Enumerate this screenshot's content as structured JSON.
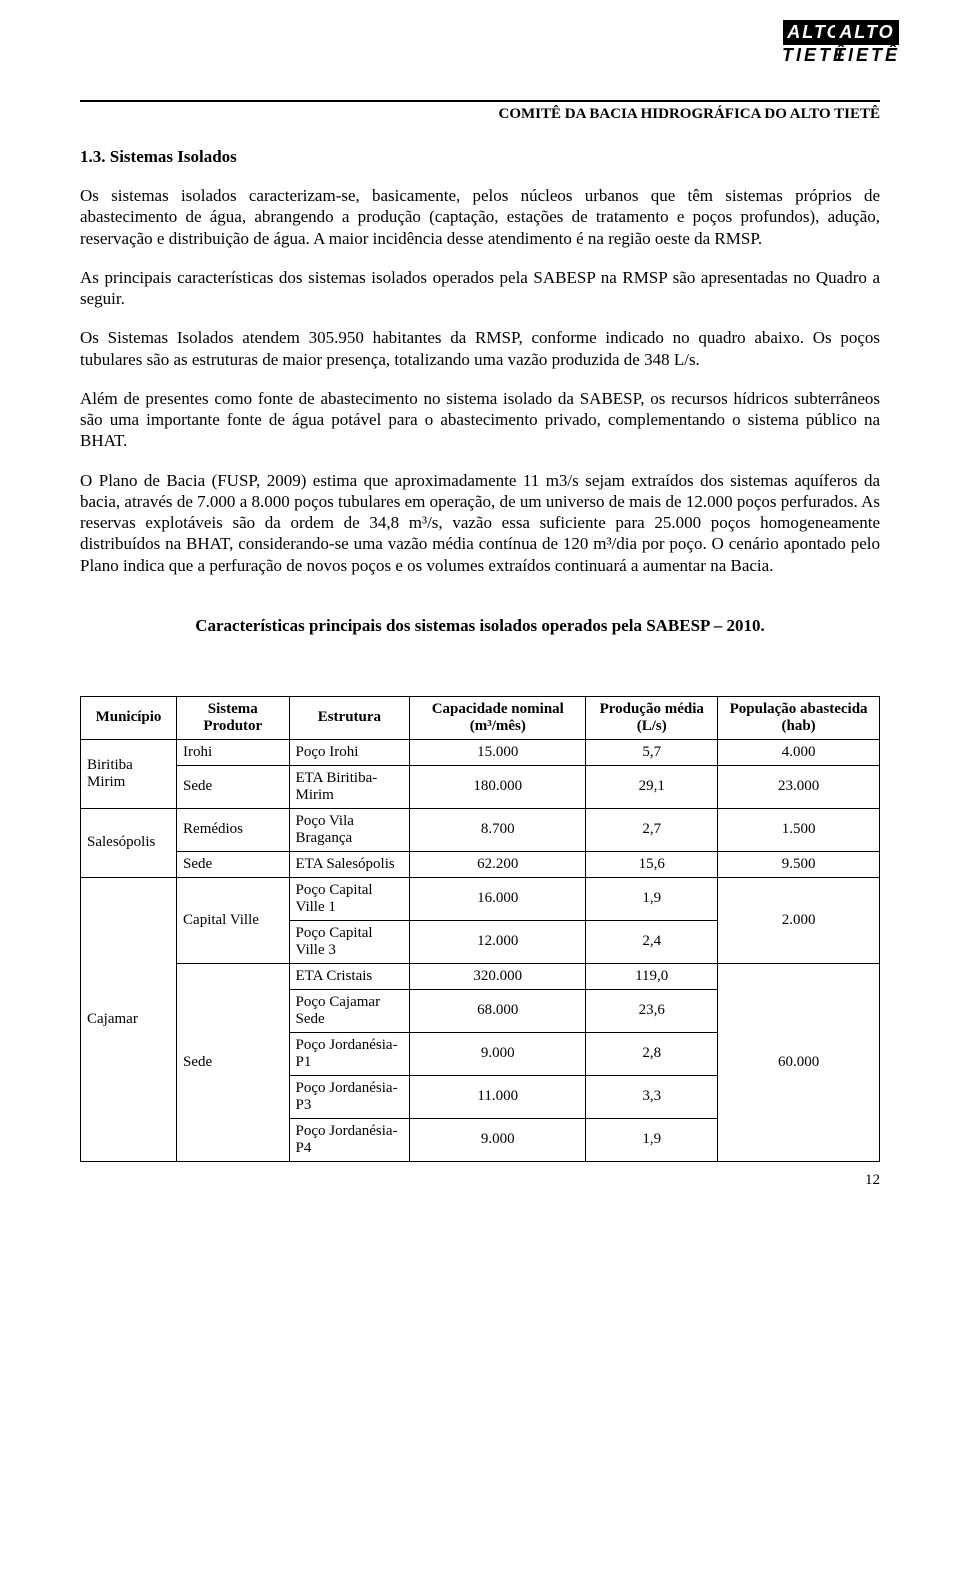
{
  "header": {
    "committee": "COMITÊ DA BACIA HIDROGRÁFICA DO ALTO TIETÊ",
    "logo_top": "ALTO",
    "logo_bottom": "TIETÊ"
  },
  "section": {
    "number_title": "1.3. Sistemas Isolados"
  },
  "paragraphs": {
    "p1": "Os sistemas isolados caracterizam-se, basicamente, pelos núcleos urbanos que têm sistemas próprios de abastecimento de água, abrangendo a produção (captação, estações de tratamento e poços profundos), adução, reservação e distribuição de água. A maior incidência desse atendimento é na região oeste da RMSP.",
    "p2": "As principais características dos sistemas isolados operados pela SABESP na RMSP são apresentadas no Quadro a seguir.",
    "p3": "Os Sistemas Isolados atendem 305.950 habitantes da RMSP, conforme indicado no quadro abaixo. Os poços tubulares são as estruturas de maior presença, totalizando uma vazão produzida de 348 L/s.",
    "p4": "Além de presentes como fonte de abastecimento no sistema isolado da SABESP, os recursos hídricos subterrâneos são uma importante fonte de água potável para o abastecimento privado, complementando o sistema público na BHAT.",
    "p5": "O Plano de Bacia (FUSP, 2009) estima que aproximadamente 11 m3/s sejam extraídos dos sistemas aquíferos da bacia, através de 7.000 a 8.000 poços tubulares em operação, de um universo de mais de 12.000 poços perfurados. As reservas explotáveis são da ordem de 34,8 m³/s, vazão essa suficiente para 25.000 poços homogeneamente distribuídos na BHAT, considerando-se uma vazão média contínua de 120 m³/dia por poço. O cenário apontado pelo Plano indica que a perfuração de novos poços e os volumes extraídos continuará a aumentar na Bacia."
  },
  "table": {
    "title": "Características principais dos sistemas isolados operados pela SABESP – 2010.",
    "headers": {
      "municipio": "Município",
      "sistema": "Sistema Produtor",
      "estrutura": "Estrutura",
      "capacidade": "Capacidade nominal (m³/mês)",
      "producao": "Produção média (L/s)",
      "populacao": "População abastecida (hab)"
    },
    "rows": {
      "r0": {
        "muni": "Biritiba Mirim",
        "sist": "Irohi",
        "estr": "Poço Irohi",
        "cap": "15.000",
        "prod": "5,7",
        "pop": "4.000"
      },
      "r1": {
        "sist": "Sede",
        "estr": "ETA Biritiba-Mirim",
        "cap": "180.000",
        "prod": "29,1",
        "pop": "23.000"
      },
      "r2": {
        "muni": "Salesópolis",
        "sist": "Remédios",
        "estr": "Poço Vila Bragança",
        "cap": "8.700",
        "prod": "2,7",
        "pop": "1.500"
      },
      "r3": {
        "sist": "Sede",
        "estr": "ETA Salesópolis",
        "cap": "62.200",
        "prod": "15,6",
        "pop": "9.500"
      },
      "r4": {
        "muni": "Cajamar",
        "sist": "Capital Ville",
        "estr": "Poço Capital Ville 1",
        "cap": "16.000",
        "prod": "1,9",
        "pop": "2.000"
      },
      "r5": {
        "estr": "Poço Capital Ville 3",
        "cap": "12.000",
        "prod": "2,4"
      },
      "r6": {
        "sist": "Sede",
        "estr": "ETA Cristais",
        "cap": "320.000",
        "prod": "119,0",
        "pop": "60.000"
      },
      "r7": {
        "estr": "Poço Cajamar Sede",
        "cap": "68.000",
        "prod": "23,6"
      },
      "r8": {
        "estr": "Poço Jordanésia-P1",
        "cap": "9.000",
        "prod": "2,8"
      },
      "r9": {
        "estr": "Poço Jordanésia-P3",
        "cap": "11.000",
        "prod": "3,3"
      },
      "r10": {
        "estr": "Poço Jordanésia-P4",
        "cap": "9.000",
        "prod": "1,9"
      }
    }
  },
  "page_number": "12",
  "style": {
    "background": "#ffffff",
    "text_color": "#000000",
    "font_body_pt": 17,
    "font_table_pt": 15,
    "border_color": "#000000"
  }
}
